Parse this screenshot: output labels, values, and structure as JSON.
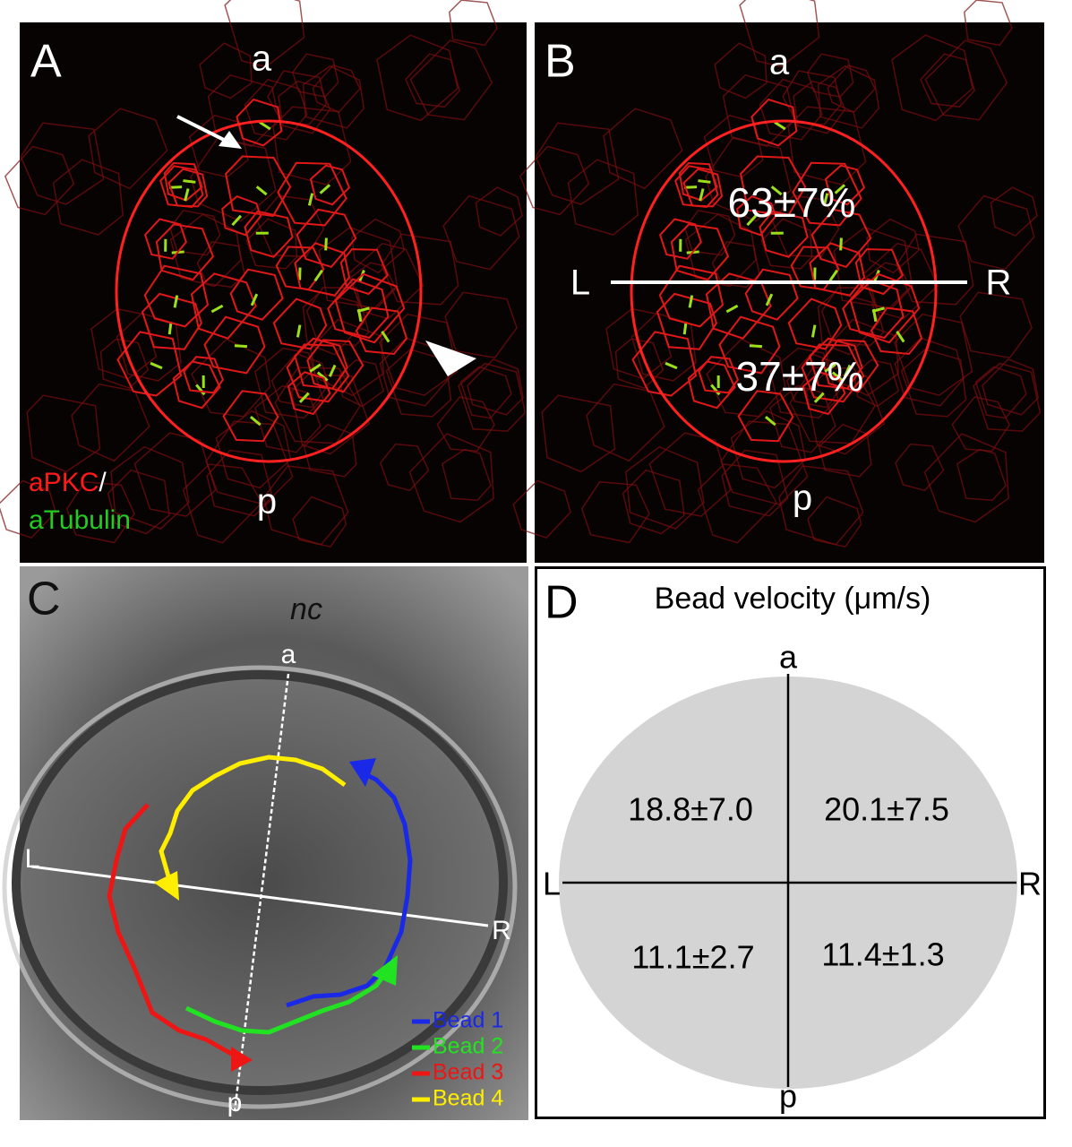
{
  "panel_a": {
    "letter": "A",
    "anterior": "a",
    "posterior": "p",
    "stain_1": "aPKC",
    "separator": "/",
    "stain_2": "aTubulin"
  },
  "panel_b": {
    "letter": "B",
    "anterior": "a",
    "posterior": "p",
    "left": "L",
    "right": "R",
    "anterior_fraction": "63±7%",
    "posterior_fraction": "37±7%"
  },
  "panel_c": {
    "letter": "C",
    "notochord": "nc",
    "anterior": "a",
    "posterior": "p",
    "left": "L",
    "right": "R",
    "legend": [
      "Bead 1",
      "Bead 2",
      "Bead 3",
      "Bead 4"
    ]
  },
  "panel_d": {
    "letter": "D",
    "title": "Bead velocity (μm/s)",
    "anterior": "a",
    "posterior": "p",
    "left": "L",
    "right": "R",
    "quadrants": {
      "anterior_left": "18.8±7.0",
      "anterior_right": "20.1±7.5",
      "posterior_left": "11.1±2.7",
      "posterior_right": "11.4±1.3"
    }
  }
}
